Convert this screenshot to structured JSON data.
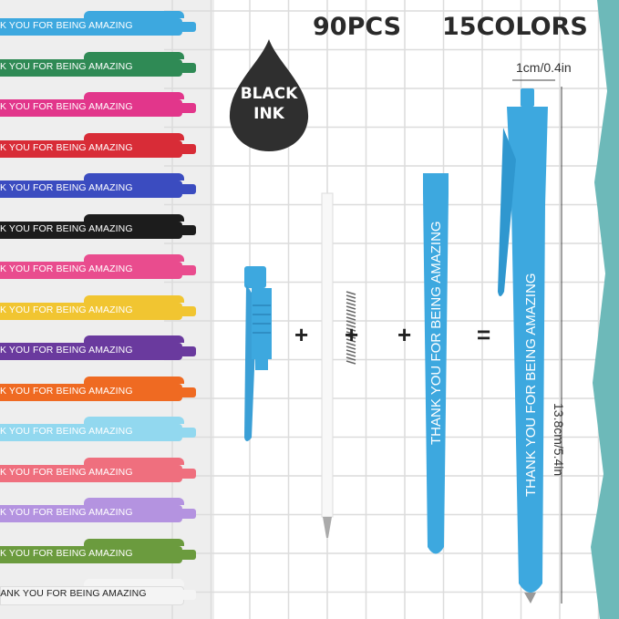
{
  "headline": {
    "count": "90PCS",
    "colors": "15COLORS"
  },
  "badge": {
    "line1": "BLACK",
    "line2": "INK"
  },
  "pen_text": "THANK YOU FOR BEING AMAZING",
  "pen_text_cropped": "K YOU FOR BEING AMAZING",
  "dimensions": {
    "width": "1cm/0.4in",
    "length": "13.8cm/5.4in"
  },
  "operators": {
    "plus": "+",
    "equals": "="
  },
  "pen_colors": [
    "#3da8df",
    "#2f8a55",
    "#e2368b",
    "#d82c37",
    "#3b4cc0",
    "#1c1c1c",
    "#e94c8e",
    "#f1c531",
    "#6a3a9e",
    "#ef6a22",
    "#92d8ef",
    "#ef6f7e",
    "#b493e0",
    "#6b9b3e",
    "#f4f4f4"
  ],
  "accent_colors": {
    "pen_blue": "#3da8df",
    "teal_brush": "#6db9b9",
    "ink_drop": "#2f2f2f"
  }
}
